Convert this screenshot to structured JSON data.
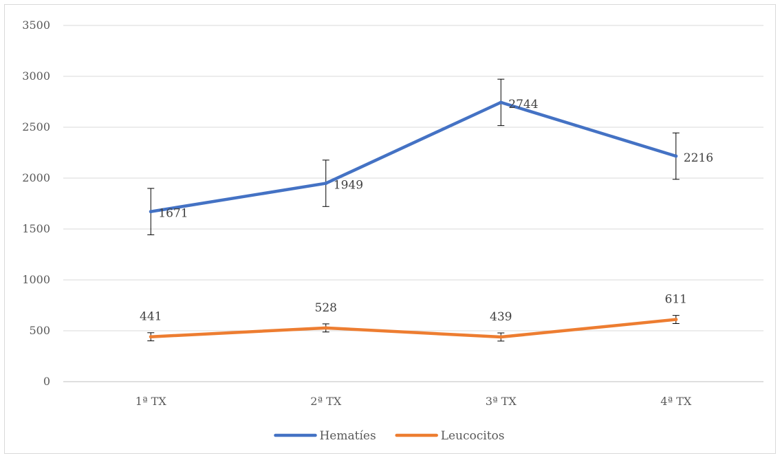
{
  "chart_data": {
    "type": "line",
    "categories": [
      "1ª TX",
      "2ª TX",
      "3ª TX",
      "4ª TX"
    ],
    "series": [
      {
        "name": "Hematíes",
        "values": [
          1671,
          1949,
          2744,
          2216
        ],
        "error": [
          228,
          228,
          228,
          228
        ],
        "color": "#4472C4"
      },
      {
        "name": "Leucocitos",
        "values": [
          441,
          528,
          439,
          611
        ],
        "error": [
          40,
          40,
          40,
          40
        ],
        "color": "#ED7D31"
      }
    ],
    "ylim": [
      0,
      3500
    ],
    "yticks": [
      0,
      500,
      1000,
      1500,
      2000,
      2500,
      3000,
      3500
    ],
    "ytick_labels": [
      "0",
      "500",
      "1000",
      "1500",
      "2000",
      "2500",
      "3000",
      "3500"
    ],
    "grid": true,
    "legend_position": "bottom"
  },
  "colors": {
    "grid": "#d9d9d9",
    "axis": "#bfbfbf",
    "errorbar": "#000000",
    "text": "#595959"
  }
}
